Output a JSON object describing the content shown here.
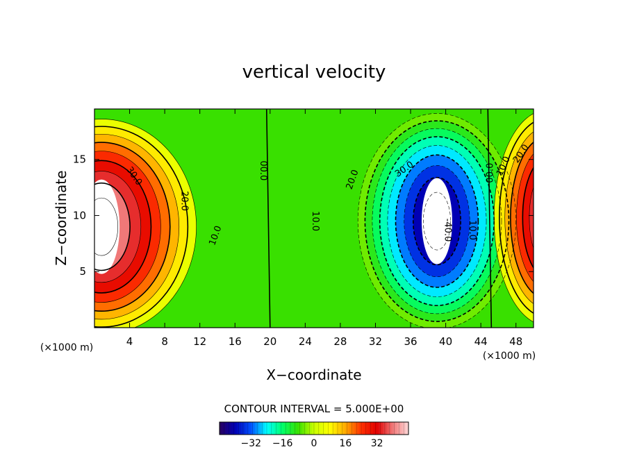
{
  "chart_data": {
    "type": "contour",
    "title": "vertical velocity",
    "xlabel": "X−coordinate",
    "ylabel": "Z−coordinate",
    "x_unit": "(×1000 m)",
    "z_unit": "(×1000 m)",
    "xlim": [
      0,
      50
    ],
    "ylim": [
      0,
      19.5
    ],
    "x_ticks": [
      4,
      8,
      12,
      16,
      20,
      24,
      28,
      32,
      36,
      40,
      44,
      48
    ],
    "y_ticks": [
      5,
      10,
      15
    ],
    "contour_interval_label": "CONTOUR INTERVAL = 5.000E+00",
    "contour_interval": 5,
    "cells": [
      {
        "x": 0.8,
        "z": 9.0,
        "peak": 48
      },
      {
        "x": 39.0,
        "z": 9.5,
        "peak": -47
      },
      {
        "x": 51.5,
        "z": 9.8,
        "peak": 40
      }
    ],
    "contour_labels": [
      {
        "text": "30.0",
        "x": 4.5,
        "z": 13.5,
        "angle": 55
      },
      {
        "text": "20.0",
        "x": 10.2,
        "z": 11.3,
        "angle": 90
      },
      {
        "text": "10.0",
        "x": 13.8,
        "z": 8.2,
        "angle": -70
      },
      {
        "text": "00.0",
        "x": 19.2,
        "z": 14.0,
        "angle": 90
      },
      {
        "text": "10.0",
        "x": 25.1,
        "z": 9.5,
        "angle": 90
      },
      {
        "text": "20.0",
        "x": 29.4,
        "z": 13.2,
        "angle": -70
      },
      {
        "text": "30.0",
        "x": 35.3,
        "z": 14.1,
        "angle": -35
      },
      {
        "text": "-40.0",
        "x": 40.2,
        "z": 8.7,
        "angle": 90
      },
      {
        "text": "10.0",
        "x": 43.0,
        "z": 8.7,
        "angle": 90
      },
      {
        "text": "00.0",
        "x": 45.1,
        "z": 13.8,
        "angle": -90
      },
      {
        "text": "10.0",
        "x": 46.6,
        "z": 14.4,
        "angle": -65
      },
      {
        "text": "20.0",
        "x": 48.6,
        "z": 15.5,
        "angle": -55
      }
    ],
    "colorbar": {
      "ticks": [
        -32,
        -16,
        0,
        16,
        32
      ],
      "range": [
        -48,
        48
      ],
      "colors": [
        "#2a0060",
        "#0000b4",
        "#0050ff",
        "#00ffff",
        "#00ff6a",
        "#39e000",
        "#caff00",
        "#ffff00",
        "#ffaa00",
        "#ff3000",
        "#e00000",
        "#f07878",
        "#ffd8d8"
      ]
    }
  }
}
